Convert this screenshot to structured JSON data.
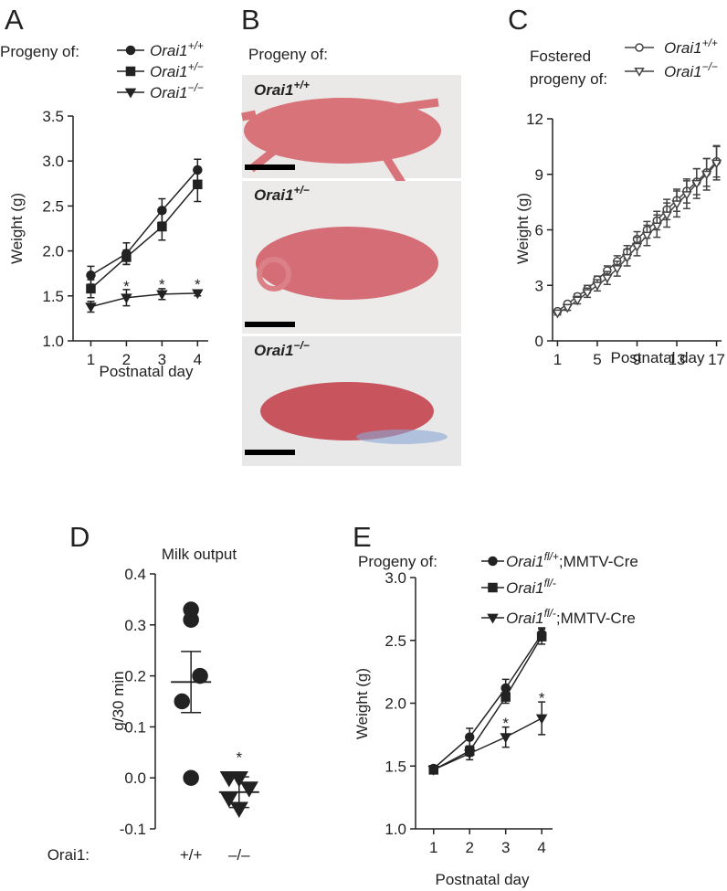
{
  "chart_data": [
    {
      "type": "line",
      "panel_label": "A",
      "legend_title": "Progeny of:",
      "xlabel": "Postnatal day",
      "ylabel": "Weight (g)",
      "x": [
        1,
        2,
        3,
        4
      ],
      "xlim": [
        0.5,
        4.3
      ],
      "xticks": [
        1,
        2,
        3,
        4
      ],
      "ylim": [
        1,
        3.5
      ],
      "yticks": [
        {
          "value": 1,
          "label": "1.0"
        },
        {
          "value": 1.5,
          "label": "1.5"
        },
        {
          "value": 2,
          "label": "2.0"
        },
        {
          "value": 2.5,
          "label": "2.5"
        },
        {
          "value": 3,
          "label": "3.0"
        },
        {
          "value": 3.5,
          "label": "3.5"
        }
      ],
      "series": [
        {
          "name": "Orai1+/+",
          "color": "#222222",
          "marker": "circle",
          "filled": true,
          "values": [
            1.73,
            1.97,
            2.45,
            2.9
          ],
          "errors": [
            0.1,
            0.12,
            0.13,
            0.12
          ]
        },
        {
          "name": "Orai1+/−",
          "color": "#222222",
          "marker": "square",
          "filled": true,
          "values": [
            1.58,
            1.93,
            2.27,
            2.74
          ],
          "errors": [
            0.1,
            0.08,
            0.15,
            0.19
          ]
        },
        {
          "name": "Orai1−/−",
          "color": "#222222",
          "marker": "triangle",
          "filled": true,
          "values": [
            1.38,
            1.48,
            1.52,
            1.53
          ],
          "errors": [
            0.06,
            0.09,
            0.06,
            0.03
          ]
        }
      ],
      "annotations": [
        {
          "x": 2,
          "y": 1.63,
          "text": "*"
        },
        {
          "x": 3,
          "y": 1.65,
          "text": "*"
        },
        {
          "x": 4,
          "y": 1.65,
          "text": "*"
        }
      ]
    },
    {
      "type": "image",
      "panel_label": "B",
      "title": "Progeny of:",
      "labels": [
        "Orai1+/+",
        "Orai1+/−",
        "Orai1−/−"
      ]
    },
    {
      "type": "line",
      "panel_label": "C",
      "legend_title": "Fostered progeny of:",
      "xlabel": "Postnatal day",
      "ylabel": "Weight (g)",
      "x": [
        1,
        2,
        3,
        4,
        5,
        6,
        7,
        8,
        9,
        10,
        11,
        12,
        13,
        14,
        15,
        16,
        17
      ],
      "xlim": [
        0.5,
        17.5
      ],
      "xticks": [
        1,
        5,
        9,
        13,
        17
      ],
      "ylim": [
        0,
        12
      ],
      "yticks": [
        0,
        3,
        6,
        9,
        12
      ],
      "series": [
        {
          "name": "Orai1+/+",
          "color": "#444444",
          "marker": "circle",
          "filled": false,
          "values": [
            1.6,
            2.0,
            2.4,
            2.8,
            3.3,
            3.8,
            4.3,
            4.8,
            5.5,
            6.0,
            6.5,
            7.1,
            7.6,
            8.1,
            8.6,
            9.1,
            9.7
          ],
          "errors": [
            0.1,
            0.1,
            0.15,
            0.2,
            0.2,
            0.25,
            0.3,
            0.35,
            0.4,
            0.45,
            0.5,
            0.55,
            0.6,
            0.65,
            0.7,
            0.75,
            0.85
          ]
        },
        {
          "name": "Orai1−/−",
          "color": "#444444",
          "marker": "triangle",
          "filled": false,
          "values": [
            1.5,
            1.8,
            2.2,
            2.6,
            3.0,
            3.4,
            3.9,
            4.5,
            5.1,
            5.7,
            6.2,
            6.8,
            7.4,
            7.9,
            8.5,
            9.0,
            9.6
          ],
          "errors": [
            0.1,
            0.15,
            0.2,
            0.25,
            0.3,
            0.35,
            0.4,
            0.45,
            0.5,
            0.55,
            0.6,
            0.65,
            0.7,
            0.75,
            0.8,
            0.85,
            0.9
          ]
        }
      ],
      "annotations": []
    },
    {
      "type": "strip",
      "panel_label": "D",
      "title": "Milk output",
      "ylabel": "g/30 min",
      "xlabel": "Orai1:",
      "categories": [
        "+/+",
        "–/–"
      ],
      "ylim": [
        -0.1,
        0.4
      ],
      "yticks": [
        -0.1,
        {
          "value": 0,
          "label": "0.0"
        },
        0.1,
        0.2,
        0.3,
        0.4
      ],
      "groups": [
        {
          "marker": "circle",
          "values": [
            0.33,
            0.31,
            0.2,
            0.15,
            0.0
          ],
          "mean": 0.188,
          "sem": 0.06
        },
        {
          "marker": "triangle",
          "values": [
            0.0,
            0.0,
            -0.02,
            -0.04,
            -0.06
          ],
          "mean": -0.028,
          "sem": 0.03
        }
      ],
      "annotations": [
        {
          "x": 1,
          "y": 0.03,
          "text": "*"
        }
      ]
    },
    {
      "type": "line",
      "panel_label": "E",
      "legend_title": "Progeny of:",
      "xlabel": "Postnatal day",
      "ylabel": "Weight (g)",
      "x": [
        1,
        2,
        3,
        4
      ],
      "xlim": [
        0.5,
        4.3
      ],
      "xticks": [
        1,
        2,
        3,
        4
      ],
      "ylim": [
        1,
        3
      ],
      "yticks": [
        {
          "value": 1,
          "label": "1.0"
        },
        {
          "value": 1.5,
          "label": "1.5"
        },
        {
          "value": 2,
          "label": "2.0"
        },
        {
          "value": 2.5,
          "label": "2.5"
        },
        {
          "value": 3,
          "label": "3.0"
        }
      ],
      "series": [
        {
          "name": "Orai1fl/+;MMTV-Cre",
          "color": "#222222",
          "marker": "circle",
          "filled": true,
          "values": [
            1.48,
            1.73,
            2.12,
            2.55
          ],
          "errors": [
            0.02,
            0.07,
            0.07,
            0.05
          ]
        },
        {
          "name": "Orai1fl/-",
          "color": "#222222",
          "marker": "square",
          "filled": true,
          "values": [
            1.47,
            1.62,
            2.05,
            2.53
          ],
          "errors": [
            0.02,
            0.04,
            0.05,
            0.06
          ]
        },
        {
          "name": "Orai1fl/-;MMTV-Cre",
          "color": "#222222",
          "marker": "triangle",
          "filled": true,
          "values": [
            1.47,
            1.6,
            1.73,
            1.88
          ],
          "errors": [
            0.02,
            0.05,
            0.08,
            0.13
          ]
        }
      ],
      "annotations": [
        {
          "x": 3,
          "y": 1.86,
          "text": "*"
        },
        {
          "x": 4,
          "y": 2.06,
          "text": "*"
        }
      ]
    }
  ]
}
